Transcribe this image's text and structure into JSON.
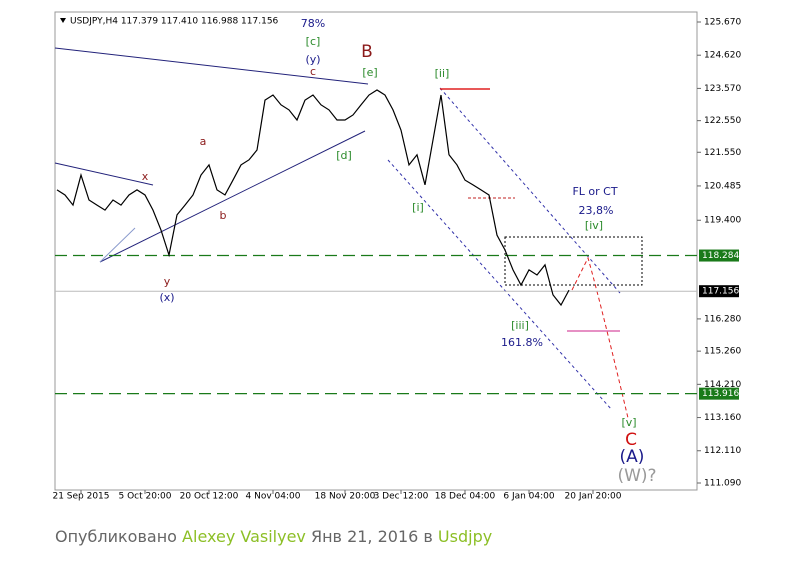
{
  "chart_data": {
    "type": "line",
    "title": "USDJPY,H4  117.379 117.410 116.988 117.156",
    "categories": [
      null,
      null,
      null,
      "21 Sep 2015",
      null,
      null,
      null,
      null,
      null,
      null,
      null,
      "5 Oct 20:00",
      null,
      null,
      null,
      null,
      null,
      null,
      null,
      "20 Oct 12:00",
      null,
      null,
      null,
      null,
      null,
      null,
      null,
      "4 Nov 04:00",
      null,
      null,
      null,
      null,
      null,
      null,
      null,
      null,
      "18 Nov 20:00",
      null,
      null,
      null,
      null,
      null,
      null,
      "3 Dec 12:00",
      null,
      null,
      null,
      null,
      null,
      null,
      null,
      "18 Dec 04:00",
      null,
      null,
      null,
      null,
      null,
      null,
      null,
      "6 Jan 04:00",
      null,
      null,
      null,
      null,
      null,
      null,
      null,
      "20 Jan 20:00",
      null,
      null,
      null,
      null
    ],
    "series": [
      {
        "name": "USDJPY",
        "color": "#000000",
        "values": [
          120.36,
          120.2,
          119.88,
          120.83,
          120.04,
          119.88,
          119.72,
          120.04,
          119.88,
          120.2,
          120.36,
          120.2,
          119.72,
          119.09,
          118.3,
          119.57,
          119.88,
          120.2,
          120.83,
          121.15,
          120.36,
          120.2,
          120.67,
          121.15,
          121.31,
          121.62,
          123.2,
          123.36,
          123.05,
          122.89,
          122.57,
          123.2,
          123.36,
          123.05,
          122.89,
          122.57,
          122.57,
          122.73,
          123.05,
          123.36,
          123.52,
          123.36,
          122.89,
          122.25,
          121.15,
          121.47,
          120.52,
          121.94,
          123.36,
          121.47,
          121.15,
          120.67,
          120.52,
          120.36,
          120.2,
          118.93,
          118.46,
          117.83,
          117.35,
          117.83,
          117.67,
          117.99,
          117.04,
          116.72,
          117.19,
          null,
          null,
          null,
          null,
          null,
          null,
          null
        ]
      }
    ],
    "ylim": [
      111.09,
      125.67
    ],
    "yticks": [
      {
        "value": 125.67,
        "label": "125.670"
      },
      {
        "value": 124.62,
        "label": "124.620"
      },
      {
        "value": 123.57,
        "label": "123.570"
      },
      {
        "value": 122.55,
        "label": "122.550"
      },
      {
        "value": 121.55,
        "label": "121.550"
      },
      {
        "value": 120.485,
        "label": "120.485"
      },
      {
        "value": 119.4,
        "label": "119.400"
      },
      {
        "value": 116.28,
        "label": "116.280"
      },
      {
        "value": 115.26,
        "label": "115.260"
      },
      {
        "value": 114.21,
        "label": "114.210"
      },
      {
        "value": 113.16,
        "label": "113.160"
      },
      {
        "value": 112.11,
        "label": "112.110"
      },
      {
        "value": 111.09,
        "label": "111.090"
      }
    ],
    "levels": [
      {
        "value": 118.284,
        "label": "118.284",
        "color": "#1a7a1a",
        "style": "dashed"
      },
      {
        "value": 117.156,
        "label": "117.156",
        "color": "#000000",
        "style": "solid"
      },
      {
        "value": 113.916,
        "label": "113.916",
        "color": "#1a7a1a",
        "style": "dashed"
      }
    ],
    "annotations": [
      "78%",
      "[c]",
      "(y)",
      "c",
      "B",
      "[e]",
      "[ii]",
      "a",
      "b",
      "x",
      "[d]",
      "[i]",
      "y",
      "(x)",
      "FL or CT",
      "23,8%",
      "[iv]",
      "[iii]",
      "161.8%",
      "[v]",
      "C",
      "(A)",
      "(W)?"
    ]
  },
  "footer": {
    "prefix": "Опубликовано ",
    "author": "Alexey Vasilyev",
    "date": " Янв 21, 2016 в ",
    "symbol": "Usdjpy"
  }
}
